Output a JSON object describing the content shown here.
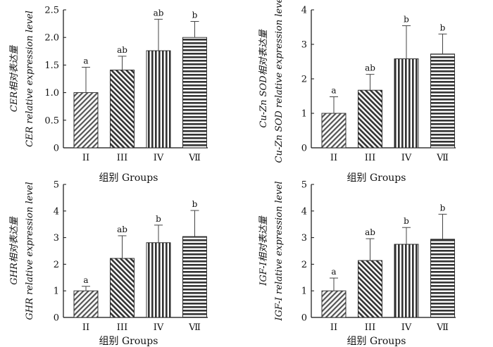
{
  "chart_data": [
    {
      "type": "bar",
      "title": "",
      "categories": [
        "II",
        "III",
        "IV",
        "Ⅶ"
      ],
      "values": [
        1.0,
        1.41,
        1.76,
        2.0
      ],
      "errors": [
        0.46,
        0.25,
        0.57,
        0.29
      ],
      "significance": [
        "a",
        "ab",
        "ab",
        "b"
      ],
      "ylabel_lines": [
        "CER相对表达量",
        "CER relative expression level"
      ],
      "xlabel": "组别 Groups",
      "ylim": [
        0,
        2.5
      ],
      "yticks": [
        "0",
        "0.5",
        "1.0",
        "1.5",
        "2.0",
        "2.5"
      ],
      "grid": false
    },
    {
      "type": "bar",
      "title": "",
      "categories": [
        "II",
        "III",
        "IV",
        "Ⅶ"
      ],
      "values": [
        1.0,
        1.67,
        2.58,
        2.72
      ],
      "errors": [
        0.48,
        0.46,
        0.96,
        0.58
      ],
      "significance": [
        "a",
        "ab",
        "b",
        "b"
      ],
      "ylabel_lines": [
        "Cu-Zn SOD相对表达量",
        "Cu-Zn SOD relative expression level"
      ],
      "xlabel": "组别 Groups",
      "ylim": [
        0,
        4
      ],
      "yticks": [
        "0",
        "1",
        "2",
        "3",
        "4"
      ],
      "grid": false
    },
    {
      "type": "bar",
      "title": "",
      "categories": [
        "II",
        "III",
        "IV",
        "Ⅶ"
      ],
      "values": [
        1.0,
        2.22,
        2.81,
        3.04
      ],
      "errors": [
        0.17,
        0.85,
        0.66,
        0.98
      ],
      "significance": [
        "a",
        "ab",
        "b",
        "b"
      ],
      "ylabel_lines": [
        "GHR相对表达量",
        "GHR relative expression level"
      ],
      "xlabel": "组别 Groups",
      "ylim": [
        0,
        5
      ],
      "yticks": [
        "0",
        "1",
        "2",
        "3",
        "4",
        "5"
      ],
      "grid": false
    },
    {
      "type": "bar",
      "title": "",
      "categories": [
        "II",
        "III",
        "IV",
        "Ⅶ"
      ],
      "values": [
        1.0,
        2.14,
        2.75,
        2.94
      ],
      "errors": [
        0.48,
        0.82,
        0.63,
        0.94
      ],
      "significance": [
        "a",
        "ab",
        "b",
        "b"
      ],
      "ylabel_lines": [
        "IGF-Ⅰ相对表达量",
        "IGF-Ⅰ relative expression level"
      ],
      "xlabel": "组别 Groups",
      "ylim": [
        0,
        5
      ],
      "yticks": [
        "0",
        "1",
        "2",
        "3",
        "4",
        "5"
      ],
      "grid": false
    }
  ]
}
